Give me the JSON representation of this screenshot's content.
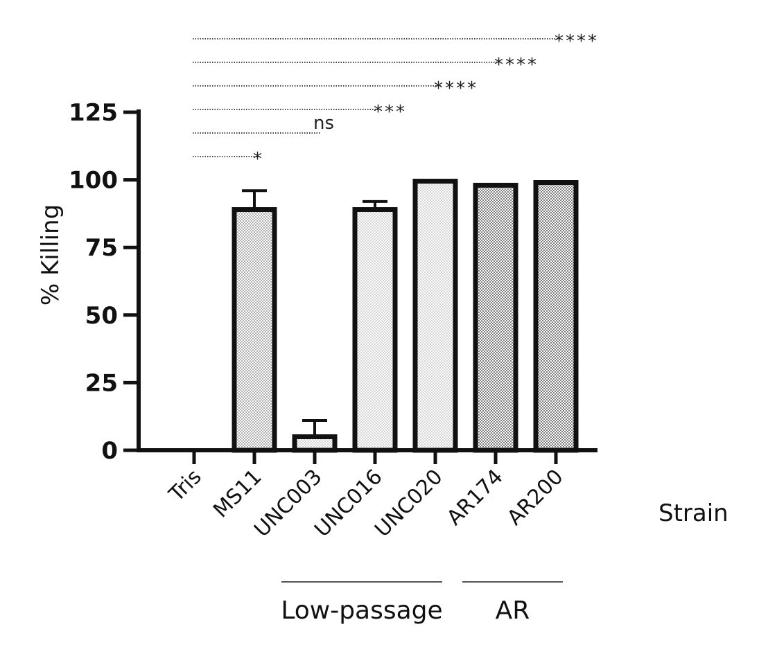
{
  "chart_data": {
    "type": "bar",
    "categories": [
      "Tris",
      "MS11",
      "UNC003",
      "UNC016",
      "UNC020",
      "AR174",
      "AR200"
    ],
    "values": [
      0,
      89,
      5,
      89,
      99.5,
      98,
      99
    ],
    "errors": [
      0,
      7,
      6,
      3,
      0,
      0,
      0
    ],
    "ylabel": "% Killing",
    "xlabel": "Strain",
    "ylim": [
      0,
      125
    ],
    "yticks": [
      "0",
      "25",
      "50",
      "75",
      "100",
      "125"
    ],
    "grid": false,
    "legend": "none",
    "bar_fill_styles": [
      "none",
      "dots-medium",
      "dots-light",
      "dots-light",
      "dots-light",
      "dots-dark",
      "dots-dark"
    ],
    "groups": [
      {
        "label": "Low-passage",
        "categories": [
          "UNC003",
          "UNC016",
          "UNC020"
        ]
      },
      {
        "label": "AR",
        "categories": [
          "AR174",
          "AR200"
        ]
      }
    ],
    "significance": [
      {
        "from": "Tris",
        "to": "MS11",
        "label": "*"
      },
      {
        "from": "Tris",
        "to": "UNC003",
        "label": "ns"
      },
      {
        "from": "Tris",
        "to": "UNC016",
        "label": "***"
      },
      {
        "from": "Tris",
        "to": "UNC020",
        "label": "****"
      },
      {
        "from": "Tris",
        "to": "AR174",
        "label": "****"
      },
      {
        "from": "Tris",
        "to": "AR200",
        "label": "****"
      }
    ],
    "colors": {
      "bar_edge": "#111111",
      "dots_dark": "#6e6e6e",
      "dots_medium": "#8a8a8a",
      "dots_light": "#b5b5b5"
    }
  }
}
